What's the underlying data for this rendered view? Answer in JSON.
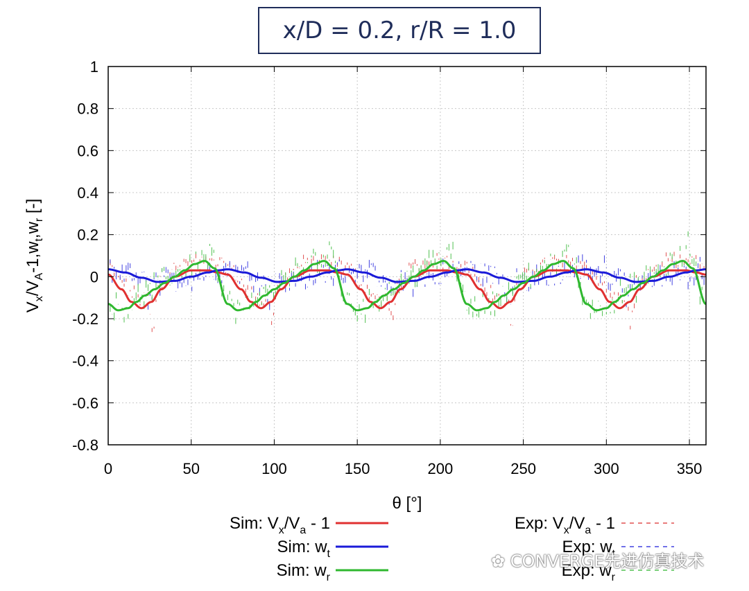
{
  "header": {
    "title": "x/D = 0.2, r/R = 1.0"
  },
  "chart_data": {
    "type": "line",
    "title": "x/D = 0.2, r/R = 1.0",
    "xlabel": "θ [°]",
    "ylabel": "Vx/VA-1,wt,wr [-]",
    "xlim": [
      0,
      360
    ],
    "ylim": [
      -0.8,
      1.0
    ],
    "xticks": [
      0,
      50,
      100,
      150,
      200,
      250,
      300,
      350
    ],
    "yticks": [
      -0.8,
      -0.6,
      -0.4,
      -0.2,
      0,
      0.2,
      0.4,
      0.6,
      0.8,
      1
    ],
    "ytick_labels": [
      "-0.8",
      "-0.6",
      "-0.4",
      "-0.2",
      "0",
      "0.2",
      "0.4",
      "0.6",
      "0.8",
      "1"
    ],
    "grid": true,
    "blade_period_deg": 72,
    "legend_position": "bottom",
    "series": [
      {
        "name": "Sim: Vx/Va - 1",
        "color": "#e03030",
        "style": "solid",
        "profile_theta_in_period": [
          0,
          8,
          14,
          20,
          26,
          32,
          40,
          50,
          60,
          66,
          72
        ],
        "profile_values": [
          0.01,
          -0.06,
          -0.12,
          -0.15,
          -0.12,
          -0.06,
          0.0,
          0.03,
          0.03,
          0.02,
          0.01
        ]
      },
      {
        "name": "Sim: wt",
        "color": "#1a1ad8",
        "style": "solid",
        "profile_theta_in_period": [
          0,
          10,
          20,
          30,
          40,
          50,
          60,
          66,
          72
        ],
        "profile_values": [
          0.035,
          0.02,
          -0.005,
          -0.025,
          -0.02,
          0.0,
          0.02,
          0.03,
          0.035
        ]
      },
      {
        "name": "Sim: wr",
        "color": "#2fb82f",
        "style": "solid",
        "profile_theta_in_period": [
          0,
          6,
          12,
          17,
          22,
          28,
          34,
          40,
          46,
          52,
          58,
          64,
          72
        ],
        "profile_values": [
          -0.13,
          -0.16,
          -0.15,
          -0.12,
          -0.09,
          -0.06,
          -0.03,
          0.0,
          0.03,
          0.06,
          0.075,
          0.04,
          -0.13
        ]
      },
      {
        "name": "Exp: Vx/Va - 1",
        "color": "#e05050",
        "style": "dashed"
      },
      {
        "name": "Exp: wt",
        "color": "#4040e0",
        "style": "dashed"
      },
      {
        "name": "Exp: wr",
        "color": "#50c050",
        "style": "dashed"
      }
    ],
    "legend": [
      {
        "key": "sim_vx",
        "prefix": "Sim: V",
        "s1": "x",
        "mid": "/V",
        "s2": "a",
        "suffix": " - 1",
        "color": "#e03030",
        "dashed": false
      },
      {
        "key": "sim_wt",
        "prefix": "Sim: w",
        "s1": "t",
        "mid": "",
        "s2": "",
        "suffix": "",
        "color": "#1a1ad8",
        "dashed": false
      },
      {
        "key": "sim_wr",
        "prefix": "Sim: w",
        "s1": "r",
        "mid": "",
        "s2": "",
        "suffix": "",
        "color": "#2fb82f",
        "dashed": false
      },
      {
        "key": "exp_vx",
        "prefix": "Exp: V",
        "s1": "x",
        "mid": "/V",
        "s2": "a",
        "suffix": " - 1",
        "color": "#e05050",
        "dashed": true
      },
      {
        "key": "exp_wt",
        "prefix": "Exp: w",
        "s1": "t",
        "mid": "",
        "s2": "",
        "suffix": "",
        "color": "#4040e0",
        "dashed": true
      },
      {
        "key": "exp_wr",
        "prefix": "Exp: w",
        "s1": "r",
        "mid": "",
        "s2": "",
        "suffix": "",
        "color": "#50c050",
        "dashed": true
      }
    ]
  },
  "watermark": {
    "text": "CONVERGE先进仿真技术",
    "icon": "wechat-icon"
  }
}
